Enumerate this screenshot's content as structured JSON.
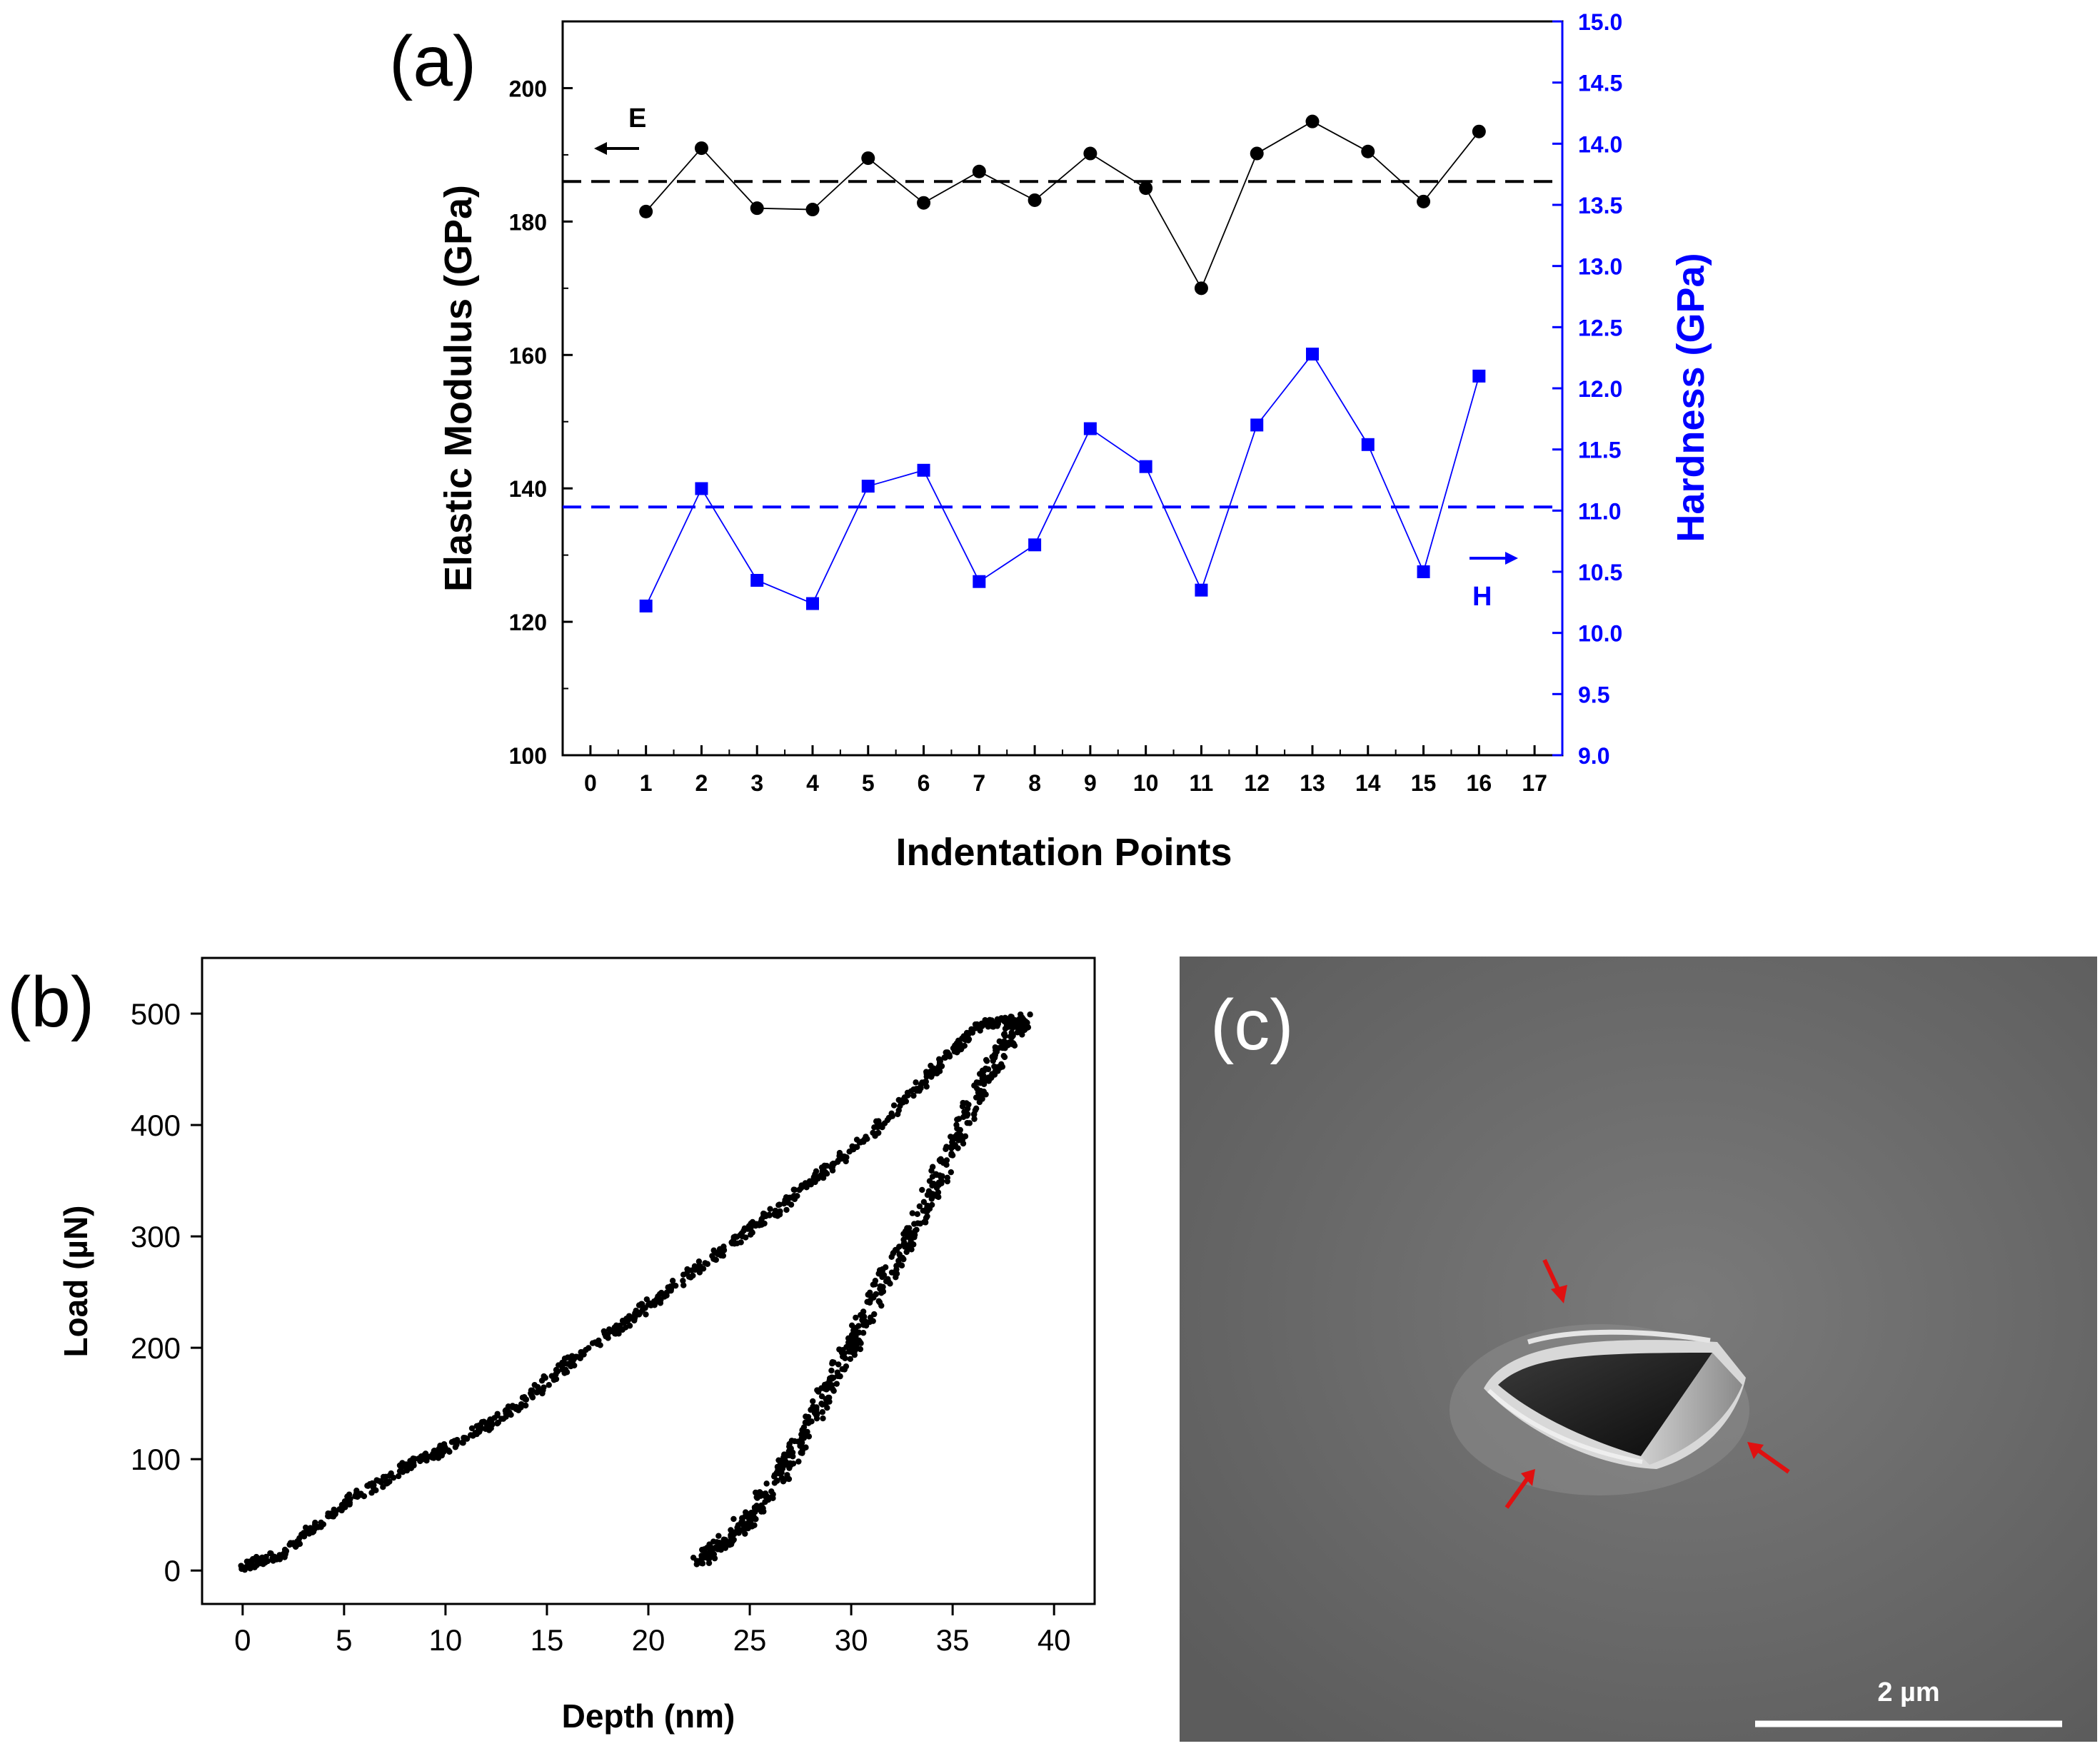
{
  "panels": {
    "a_label": "(a)",
    "b_label": "(b)",
    "c_label": "(c)"
  },
  "colors": {
    "black": "#000000",
    "blue": "#0000ff",
    "red": "#e01010",
    "sem_bg": "#6e6e6e"
  },
  "chart_data": [
    {
      "id": "a",
      "type": "line",
      "xlabel": "Indentation Points",
      "ylabel": "Elastic Modulus (GPa)",
      "y2label": "Hardness (GPa)",
      "xlim": [
        -0.5,
        17.5
      ],
      "ylim": [
        100,
        210
      ],
      "y2lim": [
        9.0,
        15.0
      ],
      "xticks": [
        0,
        1,
        2,
        3,
        4,
        5,
        6,
        7,
        8,
        9,
        10,
        11,
        12,
        13,
        14,
        15,
        16,
        17
      ],
      "yticks": [
        100,
        120,
        140,
        160,
        180,
        200
      ],
      "y2ticks": [
        "9.0",
        "9.5",
        "10.0",
        "10.5",
        "11.0",
        "11.5",
        "12.0",
        "12.5",
        "13.0",
        "13.5",
        "14.0",
        "14.5",
        "15.0"
      ],
      "x": [
        1,
        2,
        3,
        4,
        5,
        6,
        7,
        8,
        9,
        10,
        11,
        12,
        13,
        14,
        15,
        16
      ],
      "series": [
        {
          "name": "E",
          "axis": "left",
          "color": "#000000",
          "marker": "circle",
          "values": [
            181.5,
            191,
            182,
            181.8,
            189.5,
            182.8,
            187.5,
            183.2,
            190.2,
            185,
            170,
            190.2,
            195,
            190.5,
            183,
            193.5
          ],
          "mean": 186
        },
        {
          "name": "H",
          "axis": "right",
          "color": "#0000ff",
          "marker": "square",
          "values": [
            10.22,
            11.18,
            10.43,
            10.24,
            11.2,
            11.33,
            10.42,
            10.72,
            11.67,
            11.36,
            10.35,
            11.7,
            12.28,
            11.54,
            10.5,
            12.1
          ],
          "mean": 11.03
        }
      ],
      "annotations": [
        "E",
        "H"
      ]
    },
    {
      "id": "b",
      "type": "scatter",
      "xlabel": "Depth (nm)",
      "ylabel": "Load (µN)",
      "xlim": [
        -2,
        42
      ],
      "ylim": [
        -30,
        550
      ],
      "xticks": [
        0,
        5,
        10,
        15,
        20,
        25,
        30,
        35,
        40
      ],
      "yticks": [
        0,
        100,
        200,
        300,
        400,
        500
      ],
      "loading_curve": [
        [
          0,
          3
        ],
        [
          2,
          15
        ],
        [
          5,
          60
        ],
        [
          8,
          93
        ],
        [
          10,
          110
        ],
        [
          13,
          140
        ],
        [
          16,
          185
        ],
        [
          19,
          225
        ],
        [
          22,
          265
        ],
        [
          25,
          305
        ],
        [
          28,
          348
        ],
        [
          31,
          392
        ],
        [
          34,
          448
        ],
        [
          36.3,
          490
        ],
        [
          38.5,
          495
        ]
      ],
      "unloading_curve": [
        [
          38.5,
          495
        ],
        [
          37.5,
          470
        ],
        [
          36,
          420
        ],
        [
          34.5,
          360
        ],
        [
          33,
          305
        ],
        [
          31.5,
          255
        ],
        [
          30,
          200
        ],
        [
          28.5,
          150
        ],
        [
          27,
          100
        ],
        [
          25.5,
          60
        ],
        [
          24,
          28
        ],
        [
          22.5,
          8
        ]
      ]
    }
  ],
  "sem": {
    "scale_label": "2 µm"
  }
}
